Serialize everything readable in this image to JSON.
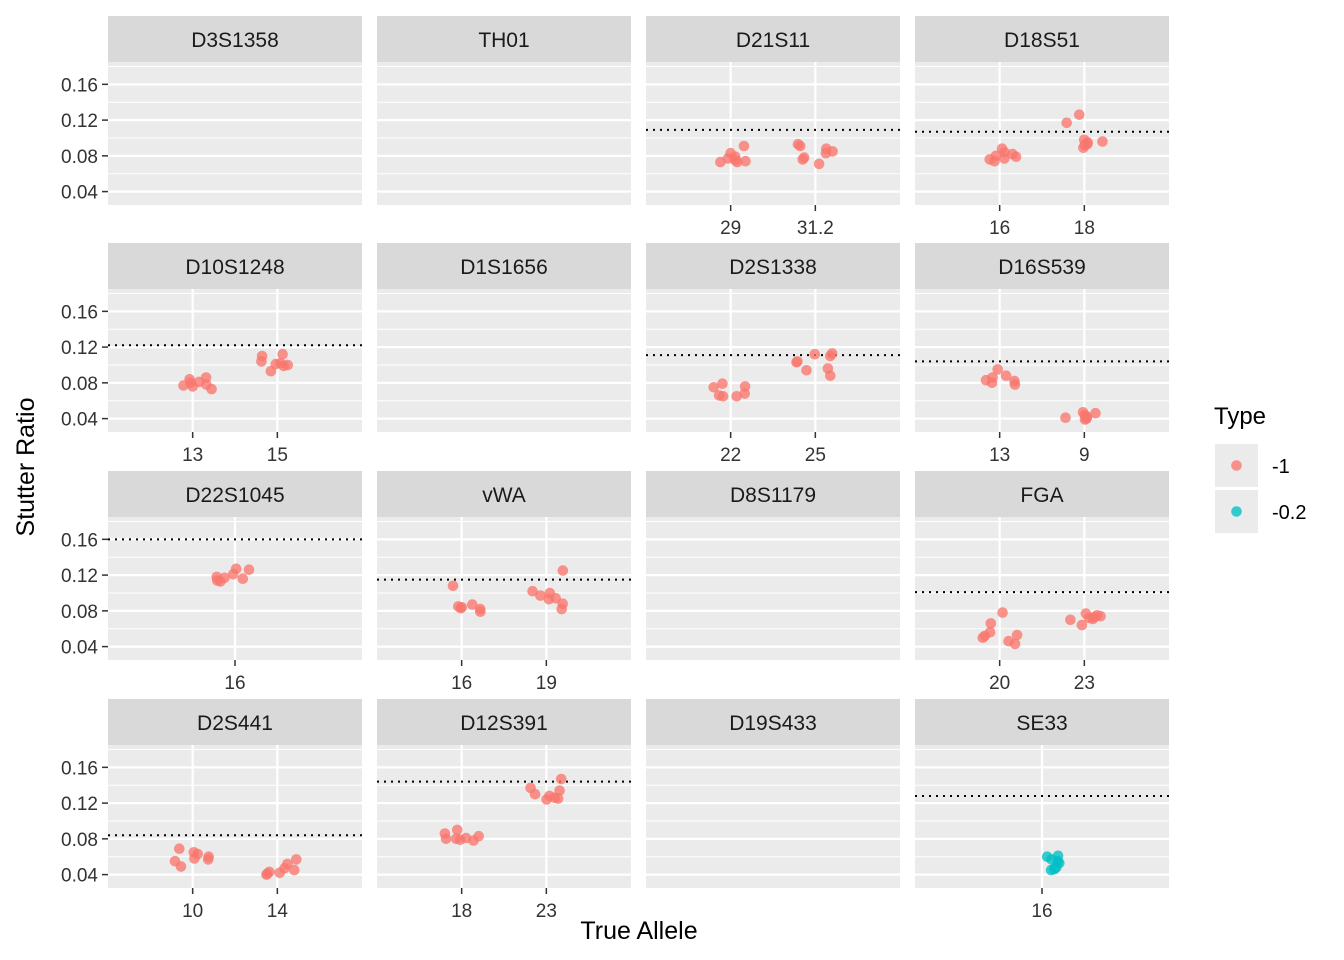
{
  "chart_data": {
    "type": "scatter",
    "xlabel": "True Allele",
    "ylabel": "Stutter Ratio",
    "y_ticks": [
      "0.04",
      "0.08",
      "0.12",
      "0.16"
    ],
    "ylim": [
      0.025,
      0.185
    ],
    "legend": {
      "title": "Type",
      "placement": "right",
      "entries": [
        {
          "label": "-1",
          "color": "#F8766D"
        },
        {
          "label": "-0.2",
          "color": "#00BFC4"
        }
      ]
    },
    "panels": [
      {
        "name": "D3S1358",
        "x_ticks": [],
        "threshold": null,
        "groups": []
      },
      {
        "name": "TH01",
        "x_ticks": [],
        "threshold": null,
        "groups": []
      },
      {
        "name": "D21S11",
        "x_ticks": [
          "29",
          "31.2"
        ],
        "threshold": 0.109,
        "groups": [
          {
            "allele": "29",
            "type": "-1",
            "values": [
              0.091,
              0.083,
              0.079,
              0.077,
              0.075,
              0.074,
              0.073,
              0.073
            ]
          },
          {
            "allele": "31.2",
            "type": "-1",
            "values": [
              0.093,
              0.091,
              0.088,
              0.085,
              0.083,
              0.078,
              0.076,
              0.071
            ]
          }
        ]
      },
      {
        "name": "D18S51",
        "x_ticks": [
          "16",
          "18"
        ],
        "threshold": 0.107,
        "groups": [
          {
            "allele": "16",
            "type": "-1",
            "values": [
              0.088,
              0.084,
              0.082,
              0.08,
              0.079,
              0.077,
              0.076,
              0.074
            ]
          },
          {
            "allele": "18",
            "type": "-1",
            "values": [
              0.126,
              0.117,
              0.098,
              0.096,
              0.095,
              0.093,
              0.092,
              0.089
            ]
          }
        ]
      },
      {
        "name": "D10S1248",
        "x_ticks": [
          "13",
          "15"
        ],
        "threshold": 0.122,
        "groups": [
          {
            "allele": "13",
            "type": "-1",
            "values": [
              0.086,
              0.084,
              0.081,
              0.08,
              0.078,
              0.077,
              0.076,
              0.073
            ]
          },
          {
            "allele": "15",
            "type": "-1",
            "values": [
              0.112,
              0.11,
              0.104,
              0.102,
              0.101,
              0.1,
              0.099,
              0.093
            ]
          }
        ]
      },
      {
        "name": "D1S1656",
        "x_ticks": [],
        "threshold": null,
        "groups": []
      },
      {
        "name": "D2S1338",
        "x_ticks": [
          "22",
          "25"
        ],
        "threshold": 0.111,
        "groups": [
          {
            "allele": "22",
            "type": "-1",
            "values": [
              0.079,
              0.076,
              0.075,
              0.068,
              0.066,
              0.065,
              0.065
            ]
          },
          {
            "allele": "25",
            "type": "-1",
            "values": [
              0.113,
              0.112,
              0.11,
              0.104,
              0.103,
              0.096,
              0.094,
              0.088
            ]
          }
        ]
      },
      {
        "name": "D16S539",
        "x_ticks": [
          "13",
          "9"
        ],
        "threshold": 0.104,
        "groups": [
          {
            "allele": "13",
            "type": "-1",
            "values": [
              0.095,
              0.088,
              0.086,
              0.083,
              0.082,
              0.08,
              0.078
            ]
          },
          {
            "allele": "9",
            "type": "-1",
            "values": [
              0.047,
              0.046,
              0.044,
              0.042,
              0.041,
              0.04,
              0.039
            ]
          }
        ]
      },
      {
        "name": "D22S1045",
        "x_ticks": [
          "16"
        ],
        "threshold": 0.16,
        "groups": [
          {
            "allele": "16",
            "type": "-1",
            "values": [
              0.127,
              0.126,
              0.121,
              0.118,
              0.117,
              0.116,
              0.114,
              0.113
            ]
          }
        ]
      },
      {
        "name": "vWA",
        "x_ticks": [
          "16",
          "19"
        ],
        "threshold": 0.115,
        "groups": [
          {
            "allele": "16",
            "type": "-1",
            "values": [
              0.108,
              0.087,
              0.085,
              0.084,
              0.083,
              0.082,
              0.079
            ]
          },
          {
            "allele": "19",
            "type": "-1",
            "values": [
              0.125,
              0.102,
              0.1,
              0.097,
              0.094,
              0.093,
              0.088,
              0.082
            ]
          }
        ]
      },
      {
        "name": "D8S1179",
        "x_ticks": [],
        "threshold": null,
        "groups": []
      },
      {
        "name": "FGA",
        "x_ticks": [
          "20",
          "23"
        ],
        "threshold": 0.101,
        "groups": [
          {
            "allele": "20",
            "type": "-1",
            "values": [
              0.078,
              0.066,
              0.056,
              0.053,
              0.052,
              0.05,
              0.046,
              0.043
            ]
          },
          {
            "allele": "23",
            "type": "-1",
            "values": [
              0.077,
              0.075,
              0.074,
              0.073,
              0.072,
              0.071,
              0.07,
              0.064
            ]
          }
        ]
      },
      {
        "name": "D2S441",
        "x_ticks": [
          "10",
          "14"
        ],
        "threshold": 0.084,
        "groups": [
          {
            "allele": "10",
            "type": "-1",
            "values": [
              0.069,
              0.065,
              0.063,
              0.06,
              0.058,
              0.057,
              0.055,
              0.049
            ]
          },
          {
            "allele": "14",
            "type": "-1",
            "values": [
              0.057,
              0.052,
              0.047,
              0.045,
              0.043,
              0.042,
              0.041,
              0.04
            ]
          }
        ]
      },
      {
        "name": "D12S391",
        "x_ticks": [
          "18",
          "23"
        ],
        "threshold": 0.144,
        "groups": [
          {
            "allele": "18",
            "type": "-1",
            "values": [
              0.09,
              0.086,
              0.083,
              0.081,
              0.08,
              0.08,
              0.079,
              0.078
            ]
          },
          {
            "allele": "23",
            "type": "-1",
            "values": [
              0.147,
              0.137,
              0.134,
              0.13,
              0.128,
              0.126,
              0.125,
              0.124
            ]
          }
        ]
      },
      {
        "name": "D19S433",
        "x_ticks": [],
        "threshold": null,
        "groups": []
      },
      {
        "name": "SE33",
        "x_ticks": [
          "16"
        ],
        "threshold": 0.128,
        "groups": [
          {
            "allele": "16",
            "type": "-0.2",
            "values": [
              0.061,
              0.06,
              0.057,
              0.055,
              0.053,
              0.048,
              0.046,
              0.045
            ]
          }
        ]
      }
    ]
  }
}
